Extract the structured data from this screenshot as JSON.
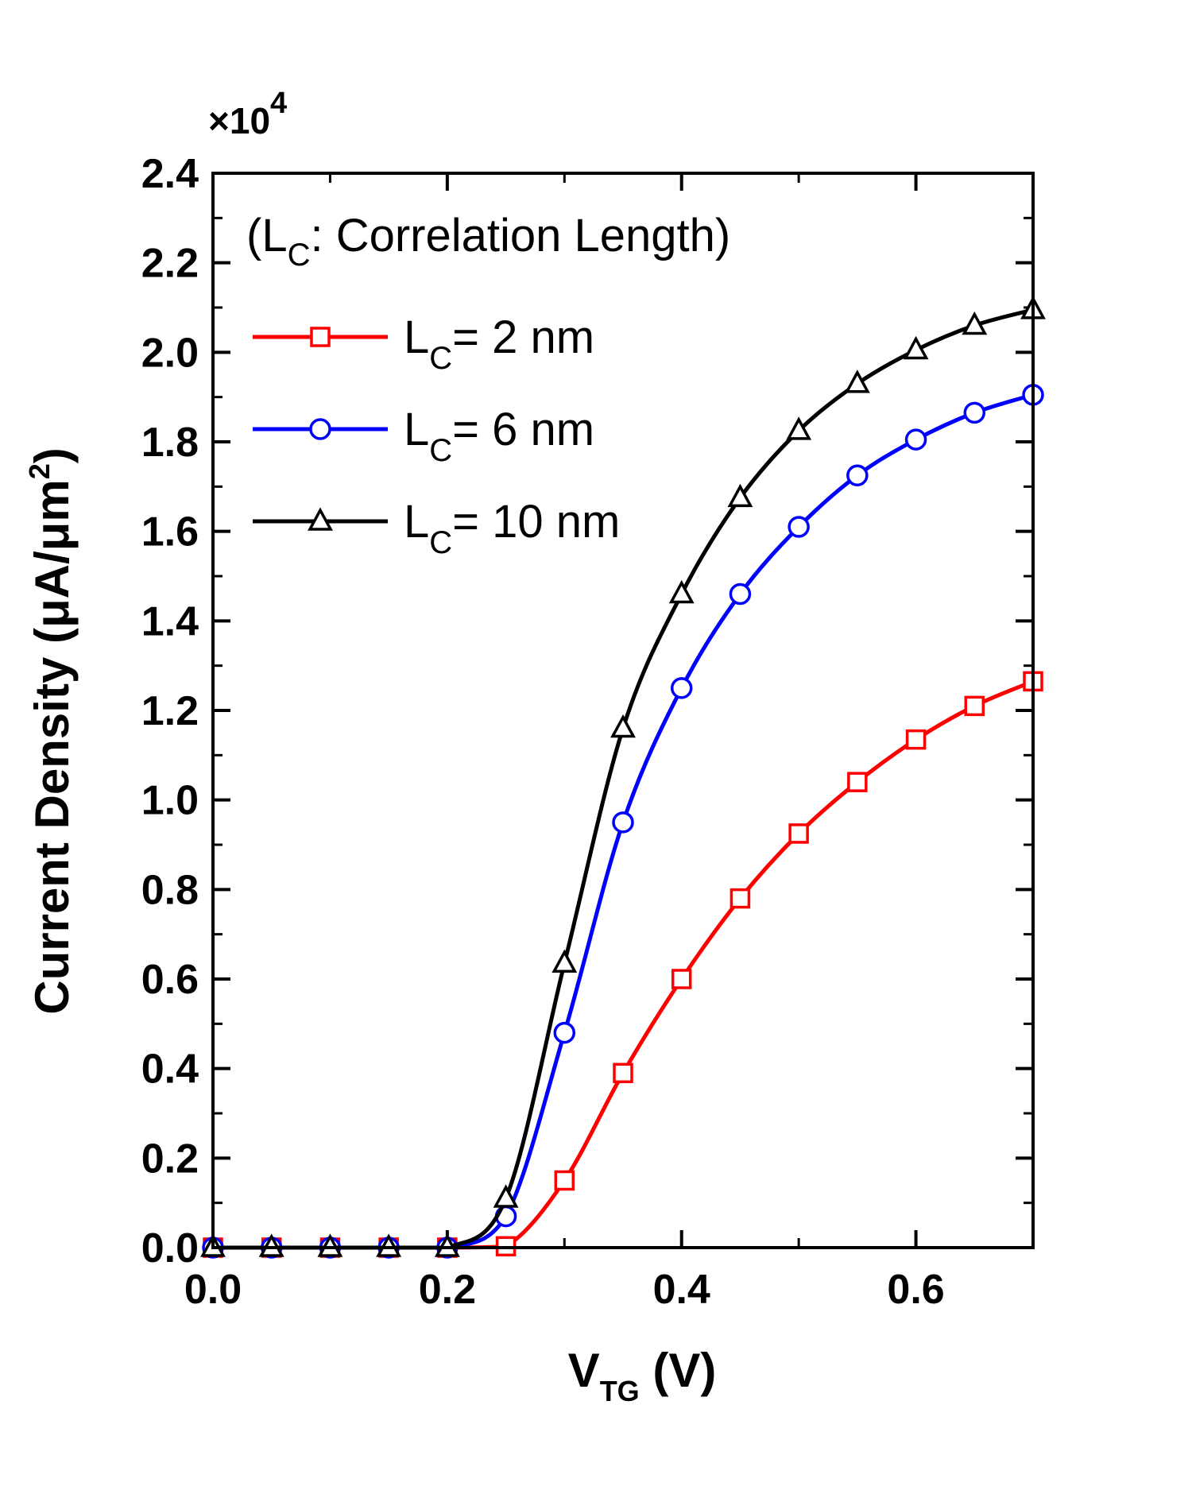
{
  "chart_data": {
    "type": "line",
    "title": "",
    "xlabel": {
      "main": "V",
      "sub": "TG",
      "tail": " (V)"
    },
    "ylabel": {
      "main": "Current Density (μA/μm",
      "sup": "2",
      "tail": ")"
    },
    "y_multiplier": {
      "prefix": "×10",
      "exp": "4"
    },
    "annotation": {
      "open": "(L",
      "sub": "C",
      "rest": ": Correlation Length)"
    },
    "xlim": [
      0.0,
      0.7
    ],
    "ylim": [
      0.0,
      2.4
    ],
    "xticks": [
      0.0,
      0.2,
      0.4,
      0.6
    ],
    "xtick_labels": [
      "0.0",
      "0.2",
      "0.4",
      "0.6"
    ],
    "yticks": [
      0.0,
      0.2,
      0.4,
      0.6,
      0.8,
      1.0,
      1.2,
      1.4,
      1.6,
      1.8,
      2.0,
      2.2,
      2.4
    ],
    "ytick_labels": [
      "0.0",
      "0.2",
      "0.4",
      "0.6",
      "0.8",
      "1.0",
      "1.2",
      "1.4",
      "1.6",
      "1.8",
      "2.0",
      "2.2",
      "2.4"
    ],
    "grid": false,
    "legend_position": "top-left",
    "x": [
      0.0,
      0.05,
      0.1,
      0.15,
      0.2,
      0.25,
      0.3,
      0.35,
      0.4,
      0.45,
      0.5,
      0.55,
      0.6,
      0.65,
      0.7
    ],
    "series": [
      {
        "name": "L= 2 nm",
        "legend_main": "L",
        "legend_sub": "C",
        "legend_rest": "= 2 nm",
        "color": "#ff0000",
        "marker": "square",
        "values": [
          0.0,
          0.0,
          0.0,
          0.0,
          0.0,
          0.003,
          0.15,
          0.39,
          0.6,
          0.78,
          0.925,
          1.04,
          1.135,
          1.21,
          1.265
        ]
      },
      {
        "name": "L= 6 nm",
        "legend_main": "L",
        "legend_sub": "C",
        "legend_rest": "= 6 nm",
        "color": "#0000ff",
        "marker": "circle",
        "values": [
          0.0,
          0.0,
          0.0,
          0.0,
          0.0,
          0.07,
          0.48,
          0.95,
          1.25,
          1.46,
          1.61,
          1.725,
          1.805,
          1.865,
          1.905
        ]
      },
      {
        "name": "L= 10 nm",
        "legend_main": "L",
        "legend_sub": "C",
        "legend_rest": "= 10 nm",
        "color": "#000000",
        "marker": "triangle",
        "values": [
          0.0,
          0.0,
          0.0,
          0.0,
          0.0,
          0.11,
          0.635,
          1.16,
          1.46,
          1.675,
          1.825,
          1.93,
          2.005,
          2.06,
          2.095
        ]
      }
    ]
  }
}
